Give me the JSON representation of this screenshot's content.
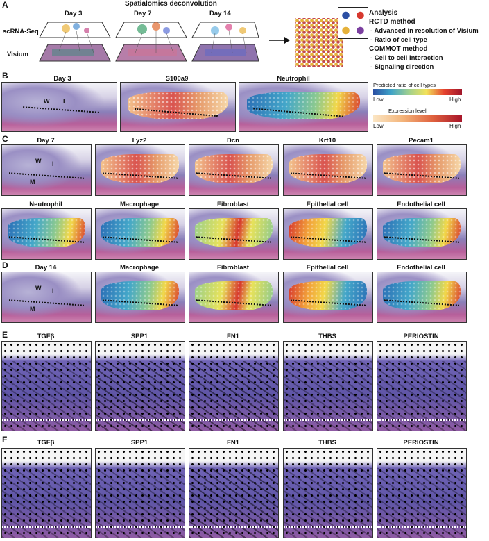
{
  "panelA": {
    "label": "A",
    "title": "Spatialomics deconvolution",
    "days": [
      "Day 3",
      "Day 7",
      "Day 14"
    ],
    "row_scrna": "scRNA-Seq",
    "row_visium": "Visium",
    "analysis": {
      "heading": "Analysis",
      "rctd": "RCTD method",
      "rctd_1": "- Advanced in resolution of Visium",
      "rctd_2": "- Ratio of cell type",
      "commot": "COMMOT method",
      "commot_1": "- Cell to cell interaction",
      "commot_2": "- Signaling direction"
    }
  },
  "panelB": {
    "label": "B",
    "titles": [
      "Day 3",
      "S100a9",
      "Neutrophil"
    ],
    "tissue_marks": [
      "W",
      "I"
    ],
    "legend_celltype": {
      "title": "Predicted ratio of cell types",
      "low": "Low",
      "high": "High"
    },
    "legend_expr": {
      "title": "Expression level",
      "low": "Low",
      "high": "High"
    }
  },
  "panelC": {
    "label": "C",
    "row1": [
      "Day 7",
      "Lyz2",
      "Dcn",
      "Krt10",
      "Pecam1"
    ],
    "row2": [
      "Neutrophil",
      "Macrophage",
      "Fibroblast",
      "Epithelial cell",
      "Endothelial cell"
    ],
    "tissue_marks": [
      "W",
      "I",
      "M"
    ]
  },
  "panelD": {
    "label": "D",
    "titles": [
      "Day 14",
      "Macrophage",
      "Fibroblast",
      "Epithelial cell",
      "Endothelial cell"
    ],
    "tissue_marks": [
      "W",
      "I",
      "M"
    ]
  },
  "panelE": {
    "label": "E",
    "titles": [
      "TGFβ",
      "SPP1",
      "FN1",
      "THBS",
      "PERIOSTIN"
    ]
  },
  "panelF": {
    "label": "F",
    "titles": [
      "TGFβ",
      "SPP1",
      "FN1",
      "THBS",
      "PERIOSTIN"
    ]
  },
  "colors": {
    "celltype_scale": [
      "#2b4fa3",
      "#3ea3c8",
      "#9fd08f",
      "#f2e25a",
      "#e5432f",
      "#a0152a"
    ],
    "expr_scale": [
      "#fbe6c4",
      "#f3b47a",
      "#e0623e",
      "#a8152a"
    ]
  }
}
